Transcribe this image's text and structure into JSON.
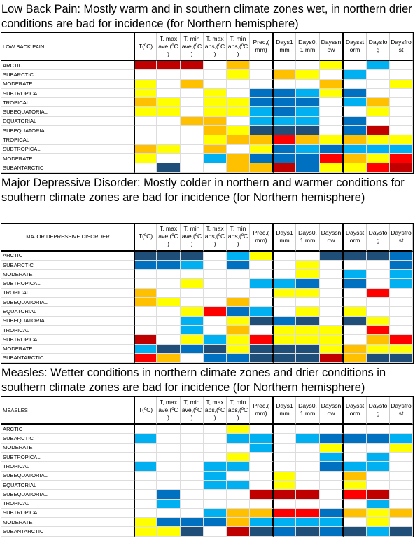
{
  "sections": [
    {
      "caption": "Low Back Pain: Mostly warm and in southern climate zones wet, in northern drier conditions are bad for incidence (for Northern hemisphere)",
      "table": {
        "title": "LOW BACK PAIN",
        "columns": [
          "T(ºC)",
          "T, max ave,(ºC )",
          "T, min ave,(ºC )",
          "T, max abs,(ºC )",
          "T, min abs,(ºC )",
          "Prec,( mm)",
          "Days1 mm",
          "Days0, 1 mm",
          "Dayssnow",
          "Daysstorm",
          "Daysfog",
          "Daysfrost"
        ],
        "rows": [
          {
            "label": "ARCTIC",
            "cells": [
              "#c00000",
              "#c00000",
              "#c00000",
              "#ffffff",
              "#ffc000",
              "#ffffff",
              "#ffffff",
              "#ffffff",
              "#ffff00",
              "#ffffff",
              "#00b0f0",
              "#ffffff"
            ]
          },
          {
            "label": "SUBARCTIC",
            "cells": [
              "#ffffff",
              "#ffffff",
              "#ffffff",
              "#ffffff",
              "#ffff00",
              "#ffffff",
              "#ffc000",
              "#ffff00",
              "#ffffff",
              "#00b0f0",
              "#ffffff",
              "#ffffff"
            ]
          },
          {
            "label": "MODERATE",
            "cells": [
              "#ffff00",
              "#ffffff",
              "#ffc000",
              "#ffffff",
              "#ffffff",
              "#ffffff",
              "#ffffff",
              "#ffffff",
              "#ffc000",
              "#ffffff",
              "#ffffff",
              "#ffff00"
            ]
          },
          {
            "label": "SUBTROPICAL",
            "cells": [
              "#ffff00",
              "#ffffff",
              "#ffffff",
              "#ffff00",
              "#ffffff",
              "#0070c0",
              "#0070c0",
              "#00b0f0",
              "#ffff00",
              "#0070c0",
              "#ffffff",
              "#ffffff"
            ]
          },
          {
            "label": "TROPICAL",
            "cells": [
              "#ffc000",
              "#ffff00",
              "#ffffff",
              "#ffff00",
              "#ffff00",
              "#0070c0",
              "#0070c0",
              "#0070c0",
              "#ffffff",
              "#00b0f0",
              "#ffc000",
              "#ffffff"
            ]
          },
          {
            "label": "SUBEQUATORIAL",
            "cells": [
              "#ffff00",
              "#ffff00",
              "#ffffff",
              "#ffff00",
              "#ffff00",
              "#00b0f0",
              "#0070c0",
              "#00b0f0",
              "#ffffff",
              "#ffffff",
              "#ffff00",
              "#ffffff"
            ]
          },
          {
            "label": "EQUATORIAL",
            "cells": [
              "#ffffff",
              "#ffffff",
              "#ffc000",
              "#ffc000",
              "#ffffff",
              "#00b0f0",
              "#00b0f0",
              "#00b0f0",
              "#ffffff",
              "#0070c0",
              "#ffffff",
              "#ffffff"
            ]
          },
          {
            "label": "SUBEQUATORIAL",
            "cells": [
              "#ffffff",
              "#ffffff",
              "#ffffff",
              "#ffc000",
              "#ffff00",
              "#1f4e79",
              "#1f4e79",
              "#1f4e79",
              "#ffffff",
              "#0070c0",
              "#c00000",
              "#ffffff"
            ]
          },
          {
            "label": "TROPICAL",
            "cells": [
              "#ffffff",
              "#ffffff",
              "#ffffff",
              "#ffff00",
              "#ffc000",
              "#ffc000",
              "#ff0000",
              "#ffc000",
              "#ffff00",
              "#ffc000",
              "#ffff00",
              "#ffff00"
            ]
          },
          {
            "label": "SUBTROPICAL",
            "cells": [
              "#ffc000",
              "#ffff00",
              "#ffffff",
              "#ffc000",
              "#ffffff",
              "#ffff00",
              "#0070c0",
              "#00b0f0",
              "#0070c0",
              "#00b0f0",
              "#00b0f0",
              "#00b0f0"
            ]
          },
          {
            "label": "MODERATE",
            "cells": [
              "#ffff00",
              "#ffffff",
              "#ffffff",
              "#00b0f0",
              "#ffc000",
              "#0070c0",
              "#0070c0",
              "#0070c0",
              "#ff0000",
              "#ffc000",
              "#ffff00",
              "#ff0000"
            ]
          },
          {
            "label": "SUBANTARCTIC",
            "cells": [
              "#ffffff",
              "#1f4e79",
              "#ffffff",
              "#ffffff",
              "#ffc000",
              "#ffc000",
              "#c00000",
              "#0070c0",
              "#ffff00",
              "#ffff00",
              "#ff0000",
              "#c00000"
            ]
          }
        ]
      }
    },
    {
      "caption": "Major Depressive Disorder: Mostly colder in northern and warmer conditions for southern climate zones are bad for incidence (for Northern hemisphere)",
      "table": {
        "title": "MAJOR DEPRESSIVE DISORDER",
        "columns": [
          "T(ºC)",
          "T, max ave,(ºC )",
          "T, min ave,(ºC )",
          "T, max abs,(ºC )",
          "T, min abs,(ºC )",
          "Prec,( mm)",
          "Days1 mm",
          "Days0, 1 mm",
          "Dayssnow",
          "Daysstorm",
          "Daysfog",
          "Daysfrost"
        ],
        "rows": [
          {
            "label": "ARCTIC",
            "cells": [
              "#1f4e79",
              "#1f4e79",
              "#1f4e79",
              "#ffffff",
              "#00b0f0",
              "#ffff00",
              "#ffffff",
              "#ffffff",
              "#1f4e79",
              "#1f4e79",
              "#1f4e79",
              "#0070c0"
            ]
          },
          {
            "label": "SUBARCTIC",
            "cells": [
              "#0070c0",
              "#0070c0",
              "#00b0f0",
              "#ffffff",
              "#0070c0",
              "#ffffff",
              "#ffffff",
              "#ffff00",
              "#ffffff",
              "#ffffff",
              "#ffffff",
              "#0070c0"
            ]
          },
          {
            "label": "MODERATE",
            "cells": [
              "#ffffff",
              "#ffffff",
              "#ffffff",
              "#ffffff",
              "#ffffff",
              "#ffffff",
              "#ffffff",
              "#ffff00",
              "#ffffff",
              "#00b0f0",
              "#ffffff",
              "#00b0f0"
            ]
          },
          {
            "label": "SUBTROPICAL",
            "cells": [
              "#ffffff",
              "#ffffff",
              "#ffff00",
              "#ffffff",
              "#ffffff",
              "#00b0f0",
              "#00b0f0",
              "#0070c0",
              "#ffffff",
              "#0070c0",
              "#ffffff",
              "#00b0f0"
            ]
          },
          {
            "label": "TROPICAL",
            "cells": [
              "#ffc000",
              "#ffffff",
              "#ffffff",
              "#ffffff",
              "#ffffff",
              "#ffffff",
              "#ffff00",
              "#ffff00",
              "#ffffff",
              "#ffffff",
              "#ff0000",
              "#ffffff"
            ]
          },
          {
            "label": "SUBEQUATORIAL",
            "cells": [
              "#ffc000",
              "#ffff00",
              "#ffffff",
              "#ffffff",
              "#ffc000",
              "#ffffff",
              "#ffffff",
              "#ffffff",
              "#ffffff",
              "#ffffff",
              "#ffffff",
              "#ffffff"
            ]
          },
          {
            "label": "EQUATORIAL",
            "cells": [
              "#ffffff",
              "#ffffff",
              "#ffff00",
              "#ff0000",
              "#0070c0",
              "#00b0f0",
              "#ffffff",
              "#ffff00",
              "#ffffff",
              "#ffff00",
              "#ffffff",
              "#ffffff"
            ]
          },
          {
            "label": "SUBEQUATORIAL",
            "cells": [
              "#ffffff",
              "#ffffff",
              "#00b0f0",
              "#ffffff",
              "#ffff00",
              "#1f4e79",
              "#0070c0",
              "#1f4e79",
              "#ffffff",
              "#1f4e79",
              "#ffff00",
              "#ffffff"
            ]
          },
          {
            "label": "TROPICAL",
            "cells": [
              "#ffffff",
              "#ffffff",
              "#00b0f0",
              "#ffffff",
              "#ffc000",
              "#ffffff",
              "#ffff00",
              "#ffff00",
              "#ffff00",
              "#ffffff",
              "#ff0000",
              "#ffffff"
            ]
          },
          {
            "label": "SUBTROPICAL",
            "cells": [
              "#c00000",
              "#ffffff",
              "#ffff00",
              "#00b0f0",
              "#ffff00",
              "#ff0000",
              "#ffff00",
              "#ffff00",
              "#ffff00",
              "#ffffff",
              "#ffc000",
              "#ff0000"
            ]
          },
          {
            "label": "MODERATE",
            "cells": [
              "#00b0f0",
              "#1f4e79",
              "#0070c0",
              "#1f4e79",
              "#ffff00",
              "#1f4e79",
              "#1f4e79",
              "#1f4e79",
              "#ffff00",
              "#ffc000",
              "#ffff00",
              "#ffff00"
            ]
          },
          {
            "label": "SUBANTARCTIC",
            "cells": [
              "#ff0000",
              "#ffc000",
              "#ffffff",
              "#0070c0",
              "#0070c0",
              "#1f4e79",
              "#1f4e79",
              "#1f4e79",
              "#c00000",
              "#ffc000",
              "#1f4e79",
              "#1f4e79"
            ]
          }
        ]
      }
    },
    {
      "caption": "Measles: Wetter conditions in northern climate zones and drier conditions in southern climate zones are bad for incidence (for Northern hemisphere)",
      "table": {
        "title": "MEASLES",
        "columns": [
          "T(ºC)",
          "T, max ave,(ºC )",
          "T, min ave,(ºC )",
          "T, max abs,(ºC )",
          "T, min abs,(ºC )",
          "Prec,( mm)",
          "Days1 mm",
          "Days0, 1 mm",
          "Dayssnow",
          "Daysstorm",
          "Daysfog",
          "Daysfrost"
        ],
        "rows": [
          {
            "label": "ARCTIC",
            "cells": [
              "#ffffff",
              "#ffffff",
              "#ffffff",
              "#ffffff",
              "#ffff00",
              "#ffffff",
              "#ffffff",
              "#ffffff",
              "#ffffff",
              "#ffffff",
              "#ffffff",
              "#ffffff"
            ]
          },
          {
            "label": "SUBARCTIC",
            "cells": [
              "#00b0f0",
              "#ffffff",
              "#ffffff",
              "#ffffff",
              "#00b0f0",
              "#00b0f0",
              "#ffffff",
              "#00b0f0",
              "#0070c0",
              "#0070c0",
              "#0070c0",
              "#00b0f0"
            ]
          },
          {
            "label": "MODERATE",
            "cells": [
              "#ffffff",
              "#ffffff",
              "#ffffff",
              "#ffffff",
              "#ffffff",
              "#00b0f0",
              "#ffffff",
              "#ffffff",
              "#ffff00",
              "#ffffff",
              "#ffffff",
              "#ffff00"
            ]
          },
          {
            "label": "SUBTROPICAL",
            "cells": [
              "#ffffff",
              "#ffffff",
              "#ffffff",
              "#ffffff",
              "#ffff00",
              "#ffffff",
              "#ffffff",
              "#ffffff",
              "#00b0f0",
              "#ffffff",
              "#00b0f0",
              "#ffffff"
            ]
          },
          {
            "label": "TROPICAL",
            "cells": [
              "#00b0f0",
              "#ffffff",
              "#ffffff",
              "#00b0f0",
              "#00b0f0",
              "#ffffff",
              "#ffffff",
              "#ffffff",
              "#0070c0",
              "#00b0f0",
              "#00b0f0",
              "#ffffff"
            ]
          },
          {
            "label": "SUBEQUATORIAL",
            "cells": [
              "#ffffff",
              "#ffffff",
              "#ffffff",
              "#00b0f0",
              "#ffffff",
              "#ffffff",
              "#ffff00",
              "#ffffff",
              "#ffffff",
              "#ffc000",
              "#ffffff",
              "#ffffff"
            ]
          },
          {
            "label": "EQUATORIAL",
            "cells": [
              "#ffffff",
              "#ffffff",
              "#ffffff",
              "#00b0f0",
              "#00b0f0",
              "#ffffff",
              "#ffff00",
              "#ffffff",
              "#ffffff",
              "#ffff00",
              "#ffffff",
              "#ffffff"
            ]
          },
          {
            "label": "SUBEQUATORIAL",
            "cells": [
              "#ffffff",
              "#0070c0",
              "#ffffff",
              "#ffffff",
              "#ffffff",
              "#c00000",
              "#c00000",
              "#c00000",
              "#ffffff",
              "#ff0000",
              "#c00000",
              "#ffffff"
            ]
          },
          {
            "label": "TROPICAL",
            "cells": [
              "#ffffff",
              "#00b0f0",
              "#ffffff",
              "#ffffff",
              "#ffffff",
              "#ffffff",
              "#ffffff",
              "#ffffff",
              "#ffffff",
              "#ffffff",
              "#00b0f0",
              "#ffffff"
            ]
          },
          {
            "label": "SUBTROPICAL",
            "cells": [
              "#ffffff",
              "#ffffff",
              "#ffffff",
              "#00b0f0",
              "#ffc000",
              "#ffc000",
              "#ff0000",
              "#ff0000",
              "#0070c0",
              "#ffc000",
              "#ffff00",
              "#ffc000"
            ]
          },
          {
            "label": "MODERATE",
            "cells": [
              "#ffff00",
              "#0070c0",
              "#0070c0",
              "#0070c0",
              "#ffc000",
              "#00b0f0",
              "#00b0f0",
              "#00b0f0",
              "#00b0f0",
              "#ffffff",
              "#ffff00",
              "#ffffff"
            ]
          },
          {
            "label": "SUBANTARCTIC",
            "cells": [
              "#ffff00",
              "#ffff00",
              "#1f4e79",
              "#ffffff",
              "#c00000",
              "#1f4e79",
              "#0070c0",
              "#1f4e79",
              "#0070c0",
              "#1f4e79",
              "#00b0f0",
              "#1f4e79"
            ]
          }
        ]
      }
    }
  ]
}
